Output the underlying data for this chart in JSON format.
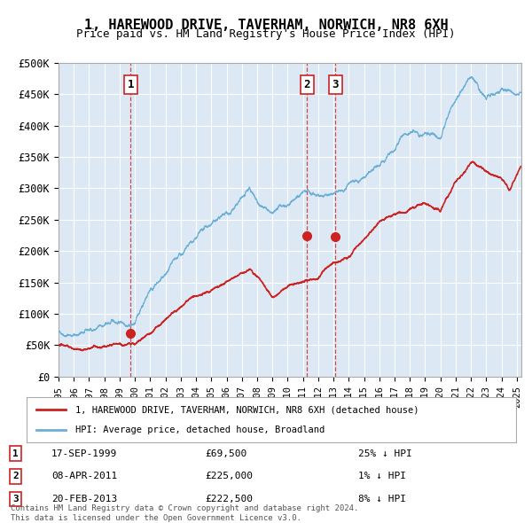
{
  "title": "1, HAREWOOD DRIVE, TAVERHAM, NORWICH, NR8 6XH",
  "subtitle": "Price paid vs. HM Land Registry's House Price Index (HPI)",
  "bg_color": "#dce9f5",
  "plot_bg_color": "#dce9f5",
  "grid_color": "#ffffff",
  "hpi_color": "#6baed6",
  "house_color": "#cc2222",
  "sale_marker_color": "#cc2222",
  "vline_color": "#cc2222",
  "ylim": [
    0,
    500000
  ],
  "yticks": [
    0,
    50000,
    100000,
    150000,
    200000,
    250000,
    300000,
    350000,
    400000,
    450000,
    500000
  ],
  "ytick_labels": [
    "£0",
    "£50K",
    "£100K",
    "£150K",
    "£200K",
    "£250K",
    "£300K",
    "£350K",
    "£400K",
    "£450K",
    "£500K"
  ],
  "xlim_start": 1995.0,
  "xlim_end": 2025.3,
  "xtick_years": [
    1995,
    1996,
    1997,
    1998,
    1999,
    2000,
    2001,
    2002,
    2003,
    2004,
    2005,
    2006,
    2007,
    2008,
    2009,
    2010,
    2011,
    2012,
    2013,
    2014,
    2015,
    2016,
    2017,
    2018,
    2019,
    2020,
    2021,
    2022,
    2023,
    2024,
    2025
  ],
  "sales": [
    {
      "label": "1",
      "date_x": 1999.72,
      "price": 69500
    },
    {
      "label": "2",
      "date_x": 2011.27,
      "price": 225000
    },
    {
      "label": "3",
      "date_x": 2013.13,
      "price": 222500
    }
  ],
  "sale_info": [
    {
      "num": "1",
      "date": "17-SEP-1999",
      "price": "£69,500",
      "note": "25% ↓ HPI"
    },
    {
      "num": "2",
      "date": "08-APR-2011",
      "price": "£225,000",
      "note": "1% ↓ HPI"
    },
    {
      "num": "3",
      "date": "20-FEB-2013",
      "price": "£222,500",
      "note": "8% ↓ HPI"
    }
  ],
  "legend_house_label": "1, HAREWOOD DRIVE, TAVERHAM, NORWICH, NR8 6XH (detached house)",
  "legend_hpi_label": "HPI: Average price, detached house, Broadland",
  "footer": "Contains HM Land Registry data © Crown copyright and database right 2024.\nThis data is licensed under the Open Government Licence v3.0."
}
